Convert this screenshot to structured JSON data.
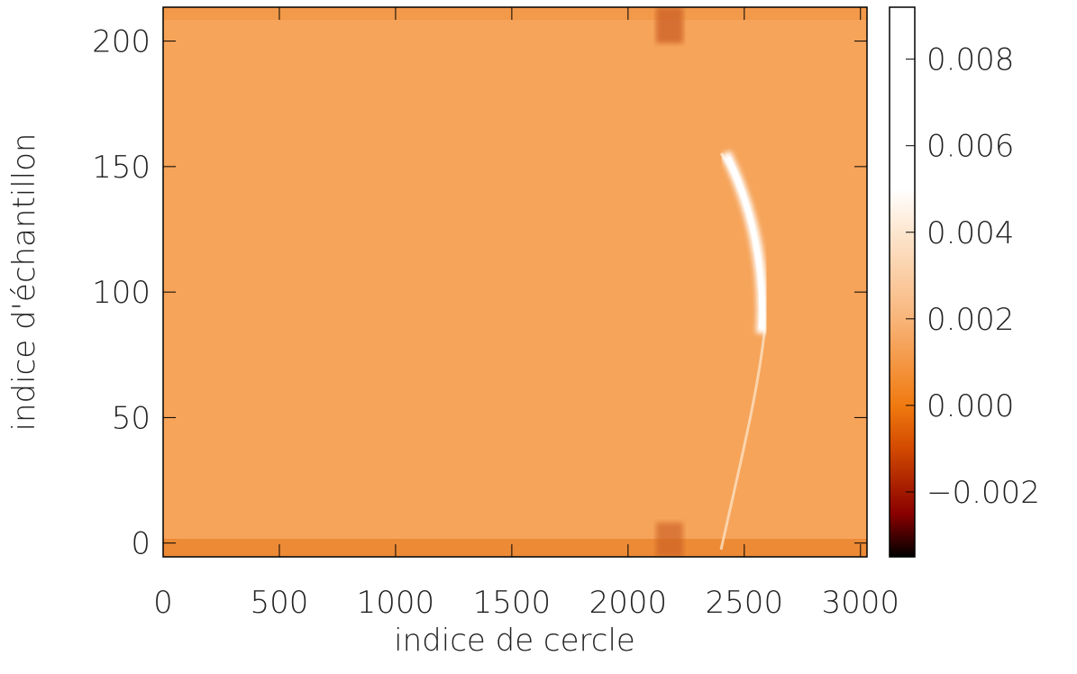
{
  "chart_data": {
    "type": "heatmap",
    "xlabel": "indice de cercle",
    "ylabel": "indice d'échantillon",
    "xlim": [
      0,
      3028
    ],
    "xticks": [
      0,
      500,
      1000,
      1500,
      2000,
      2500,
      3000
    ],
    "ylim": [
      -5.5,
      213.5
    ],
    "yticks": [
      0,
      50,
      100,
      150,
      200
    ],
    "clim": [
      -0.0035,
      0.0092
    ],
    "cticks": [
      {
        "value": -0.002,
        "label": "−0.002"
      },
      {
        "value": 0,
        "label": "0.000"
      },
      {
        "value": 0.002,
        "label": "0.002"
      },
      {
        "value": 0.004,
        "label": "0.004"
      },
      {
        "value": 0.006,
        "label": "0.006"
      },
      {
        "value": 0.008,
        "label": "0.008"
      }
    ],
    "colormap": [
      [
        -0.0035,
        "#000000"
      ],
      [
        -0.0025,
        "#8a0000"
      ],
      [
        -0.001,
        "#d24a00"
      ],
      [
        0,
        "#f07a10"
      ],
      [
        0.002,
        "#f8b57a"
      ],
      [
        0.004,
        "#fde6cf"
      ],
      [
        0.005,
        "#ffffff"
      ],
      [
        0.0092,
        "#ffffff"
      ]
    ]
  }
}
